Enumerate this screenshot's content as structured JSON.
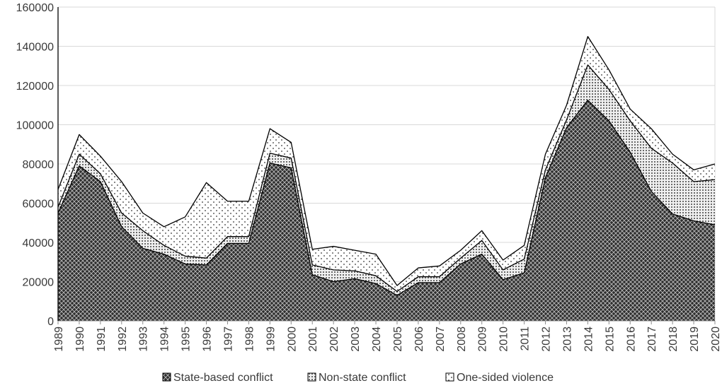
{
  "chart_data": {
    "type": "area",
    "stacked": true,
    "x": [
      "1989",
      "1990",
      "1991",
      "1992",
      "1993",
      "1994",
      "1995",
      "1996",
      "1997",
      "1998",
      "1999",
      "2000",
      "2001",
      "2002",
      "2003",
      "2004",
      "2005",
      "2006",
      "2007",
      "2008",
      "2009",
      "2010",
      "2011",
      "2012",
      "2013",
      "2014",
      "2015",
      "2016",
      "2017",
      "2018",
      "2019",
      "2020"
    ],
    "series": [
      {
        "name": "State-based conflict",
        "pattern": "crosshatch-dark",
        "values": [
          55000,
          79000,
          71000,
          48000,
          37000,
          34000,
          29000,
          28500,
          39500,
          39500,
          80500,
          78000,
          23500,
          20000,
          21500,
          19000,
          13000,
          19500,
          19500,
          29000,
          34000,
          21000,
          24500,
          73000,
          98500,
          112500,
          102000,
          86000,
          66000,
          54500,
          51000,
          49000
        ]
      },
      {
        "name": "Non-state conflict",
        "pattern": "dotted-grid",
        "values": [
          3000,
          6000,
          4000,
          7000,
          9000,
          4500,
          4000,
          3500,
          3500,
          3500,
          5000,
          5000,
          5000,
          6000,
          4000,
          4000,
          2000,
          3000,
          3000,
          3000,
          7000,
          5000,
          7000,
          4000,
          4000,
          18000,
          16000,
          16000,
          22000,
          26000,
          20000,
          23000
        ]
      },
      {
        "name": "One-sided violence",
        "pattern": "sparse-dots",
        "values": [
          9000,
          10000,
          9000,
          16000,
          9000,
          9500,
          20000,
          38500,
          18000,
          18000,
          12500,
          8000,
          8000,
          12000,
          10500,
          11000,
          3000,
          4500,
          5500,
          4000,
          5000,
          5000,
          7000,
          8000,
          7500,
          14500,
          10000,
          6000,
          10000,
          4500,
          6000,
          8000
        ]
      }
    ],
    "ylim": [
      0,
      160000
    ],
    "yticks": [
      "0",
      "20000",
      "40000",
      "60000",
      "80000",
      "100000",
      "120000",
      "140000",
      "160000"
    ],
    "grid": true,
    "legend_position": "bottom"
  }
}
